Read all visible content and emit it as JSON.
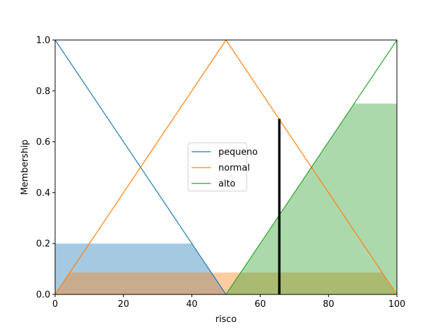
{
  "chart_data": {
    "type": "line",
    "title": "",
    "xlabel": "risco",
    "ylabel": "Membership",
    "xlim": [
      0,
      100
    ],
    "ylim": [
      0,
      1.0
    ],
    "xticks": [
      0,
      20,
      40,
      60,
      80,
      100
    ],
    "yticks": [
      0.0,
      0.2,
      0.4,
      0.6,
      0.8,
      1.0
    ],
    "grid": false,
    "legend_position": "center",
    "series": [
      {
        "name": "pequeno",
        "color": "#1f77b4",
        "x": [
          0,
          0,
          50
        ],
        "y": [
          1.0,
          1.0,
          0.0
        ]
      },
      {
        "name": "normal",
        "color": "#ff7f0e",
        "x": [
          0,
          50,
          100
        ],
        "y": [
          0.0,
          1.0,
          0.0
        ]
      },
      {
        "name": "alto",
        "color": "#2ca02c",
        "x": [
          50,
          100,
          100
        ],
        "y": [
          0.0,
          1.0,
          1.0
        ]
      }
    ],
    "activations": [
      {
        "series": "pequeno",
        "color": "#1f77b4",
        "x": [
          0,
          40,
          50
        ],
        "y": [
          0.2,
          0.2,
          0.0
        ]
      },
      {
        "series": "normal",
        "color": "#ff7f0e",
        "x": [
          0,
          4.3,
          95.7,
          100
        ],
        "y": [
          0.0,
          0.086,
          0.086,
          0.0
        ]
      },
      {
        "series": "alto",
        "color": "#2ca02c",
        "x": [
          50,
          87.5,
          100
        ],
        "y": [
          0.0,
          0.75,
          0.75
        ]
      }
    ],
    "crisp_output": {
      "x": 65.6,
      "y": 0.69,
      "color": "#000000"
    }
  }
}
